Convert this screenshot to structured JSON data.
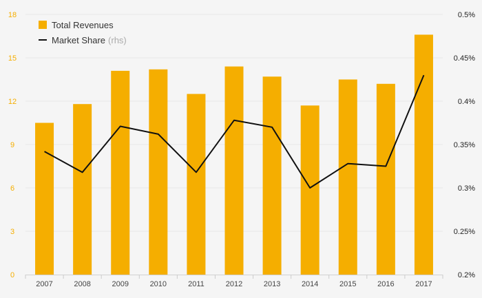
{
  "chart_data": {
    "type": "bar",
    "categories": [
      "2007",
      "2008",
      "2009",
      "2010",
      "2011",
      "2012",
      "2013",
      "2014",
      "2015",
      "2016",
      "2017"
    ],
    "series": [
      {
        "name": "Total Revenues",
        "type": "bar",
        "axis": "left",
        "values": [
          10.5,
          11.8,
          14.1,
          14.2,
          12.5,
          14.4,
          13.7,
          11.7,
          13.5,
          13.2,
          16.6
        ]
      },
      {
        "name": "Market Share",
        "type": "line",
        "axis": "right",
        "values": [
          0.342,
          0.318,
          0.371,
          0.362,
          0.318,
          0.378,
          0.37,
          0.3,
          0.328,
          0.325,
          0.43
        ]
      }
    ],
    "legend": {
      "revenues_label": "Total Revenues",
      "share_label": "Market Share",
      "share_suffix": "(rhs)",
      "position": "top-left"
    },
    "y_left": {
      "ylim": [
        0,
        18
      ],
      "ticks": [
        "0",
        "3",
        "6",
        "9",
        "12",
        "15",
        "18"
      ]
    },
    "y_right": {
      "ylim": [
        0.2,
        0.5
      ],
      "ticks": [
        "0.2%",
        "0.25%",
        "0.3%",
        "0.35%",
        "0.4%",
        "0.45%",
        "0.5%"
      ]
    },
    "grid": true,
    "colors": {
      "bar": "#f5ae00",
      "line": "#111111",
      "left_tick": "#f5ae00",
      "grid": "#e6e6e6"
    }
  }
}
